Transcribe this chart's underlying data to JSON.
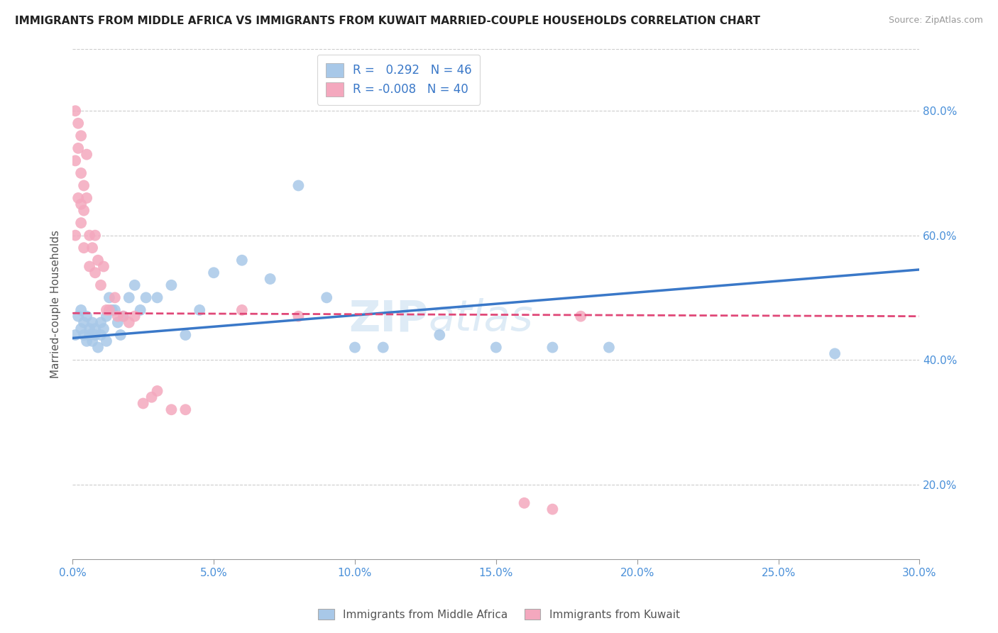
{
  "title": "IMMIGRANTS FROM MIDDLE AFRICA VS IMMIGRANTS FROM KUWAIT MARRIED-COUPLE HOUSEHOLDS CORRELATION CHART",
  "source": "Source: ZipAtlas.com",
  "xlabel_blue": "Immigrants from Middle Africa",
  "xlabel_pink": "Immigrants from Kuwait",
  "ylabel": "Married-couple Households",
  "r_blue": 0.292,
  "n_blue": 46,
  "r_pink": -0.008,
  "n_pink": 40,
  "xlim": [
    0.0,
    0.3
  ],
  "ylim": [
    0.08,
    0.9
  ],
  "xticks": [
    0.0,
    0.05,
    0.1,
    0.15,
    0.2,
    0.25,
    0.3
  ],
  "yticks": [
    0.2,
    0.4,
    0.6,
    0.8
  ],
  "color_blue": "#a8c8e8",
  "color_pink": "#f4a8be",
  "line_color_blue": "#3a78c8",
  "line_color_pink": "#e04878",
  "background_color": "#ffffff",
  "grid_color": "#cccccc",
  "blue_dots_x": [
    0.001,
    0.002,
    0.003,
    0.003,
    0.004,
    0.004,
    0.005,
    0.005,
    0.006,
    0.006,
    0.007,
    0.007,
    0.008,
    0.008,
    0.009,
    0.01,
    0.01,
    0.011,
    0.012,
    0.012,
    0.013,
    0.014,
    0.015,
    0.016,
    0.017,
    0.018,
    0.02,
    0.022,
    0.024,
    0.026,
    0.03,
    0.035,
    0.04,
    0.045,
    0.05,
    0.06,
    0.07,
    0.08,
    0.09,
    0.1,
    0.11,
    0.13,
    0.15,
    0.17,
    0.19,
    0.27
  ],
  "blue_dots_y": [
    0.44,
    0.47,
    0.45,
    0.48,
    0.44,
    0.46,
    0.43,
    0.47,
    0.45,
    0.44,
    0.46,
    0.43,
    0.45,
    0.44,
    0.42,
    0.46,
    0.44,
    0.45,
    0.43,
    0.47,
    0.5,
    0.48,
    0.48,
    0.46,
    0.44,
    0.47,
    0.5,
    0.52,
    0.48,
    0.5,
    0.5,
    0.52,
    0.44,
    0.48,
    0.54,
    0.56,
    0.53,
    0.68,
    0.5,
    0.42,
    0.42,
    0.44,
    0.42,
    0.42,
    0.42,
    0.41
  ],
  "pink_dots_x": [
    0.001,
    0.001,
    0.001,
    0.002,
    0.002,
    0.002,
    0.003,
    0.003,
    0.003,
    0.003,
    0.004,
    0.004,
    0.004,
    0.005,
    0.005,
    0.006,
    0.006,
    0.007,
    0.008,
    0.008,
    0.009,
    0.01,
    0.011,
    0.012,
    0.013,
    0.015,
    0.016,
    0.018,
    0.02,
    0.022,
    0.025,
    0.028,
    0.03,
    0.035,
    0.04,
    0.06,
    0.08,
    0.16,
    0.17,
    0.18
  ],
  "pink_dots_y": [
    0.8,
    0.72,
    0.6,
    0.78,
    0.74,
    0.66,
    0.7,
    0.65,
    0.62,
    0.76,
    0.68,
    0.64,
    0.58,
    0.73,
    0.66,
    0.6,
    0.55,
    0.58,
    0.54,
    0.6,
    0.56,
    0.52,
    0.55,
    0.48,
    0.48,
    0.5,
    0.47,
    0.47,
    0.46,
    0.47,
    0.33,
    0.34,
    0.35,
    0.32,
    0.32,
    0.48,
    0.47,
    0.17,
    0.16,
    0.47
  ],
  "blue_line_x0": 0.0,
  "blue_line_x1": 0.3,
  "blue_line_y0": 0.435,
  "blue_line_y1": 0.545,
  "pink_line_x0": 0.0,
  "pink_line_x1": 0.3,
  "pink_line_y0": 0.475,
  "pink_line_y1": 0.47
}
